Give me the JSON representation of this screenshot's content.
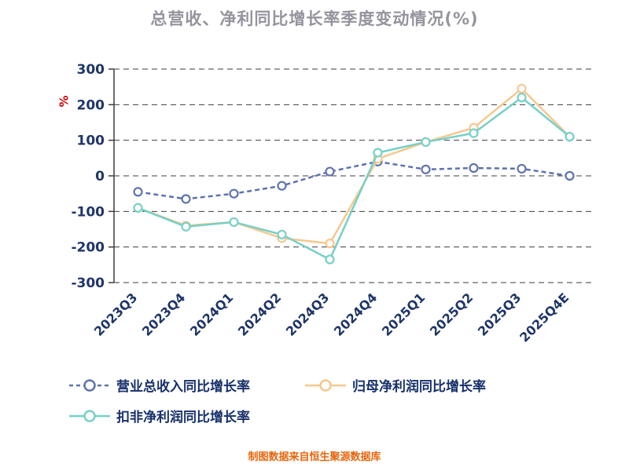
{
  "footer": {
    "note": "制图数据来自恒生聚源数据库"
  },
  "chart_data": {
    "type": "line",
    "title": "总营收、净利同比增长率季度变动情况(%)",
    "categories": [
      "2023Q3",
      "2023Q4",
      "2024Q1",
      "2024Q2",
      "2024Q3",
      "2024Q4",
      "2025Q1",
      "2025Q2",
      "2025Q3",
      "2025Q4E"
    ],
    "xlabel": "",
    "ylabel": "%",
    "ylim": [
      -300,
      300
    ],
    "ytick_step": 100,
    "grid": true,
    "legend_position": "bottom",
    "series": [
      {
        "name": "营业总收入同比增长率",
        "color": "#5f72b0",
        "marker": "circle",
        "line_style": "dashed",
        "values": [
          -45,
          -65,
          -50,
          -28,
          12,
          40,
          18,
          22,
          20,
          0
        ]
      },
      {
        "name": "归母净利润同比增长率",
        "color": "#f7c78e",
        "marker": "circle",
        "line_style": "solid",
        "values": [
          -90,
          -140,
          -130,
          -175,
          -190,
          48,
          95,
          135,
          245,
          110
        ]
      },
      {
        "name": "扣非净利润同比增长率",
        "color": "#76d0c8",
        "marker": "circle",
        "line_style": "solid",
        "values": [
          -90,
          -143,
          -130,
          -165,
          -235,
          65,
          95,
          120,
          220,
          110
        ]
      }
    ],
    "colors": {
      "axis_text": "#1f3569",
      "title": "#94949e",
      "unit_label": "#d40000",
      "footer": "#e8650c",
      "grid": "#3d3d3d"
    }
  }
}
